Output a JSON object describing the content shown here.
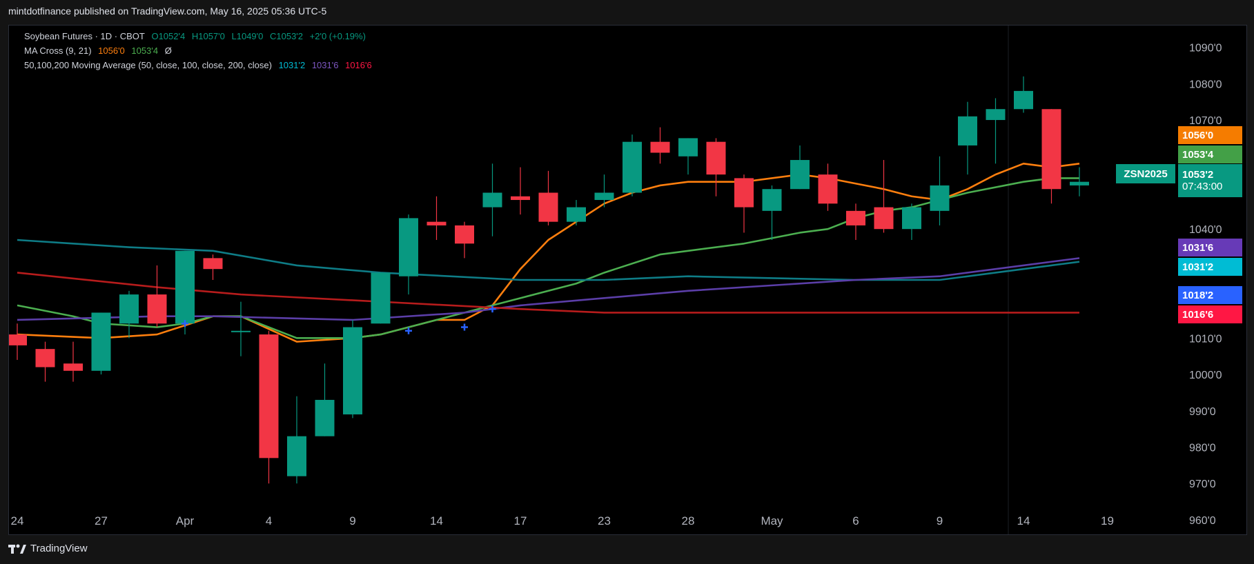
{
  "header": {
    "publisher": "mintdotfinance published on TradingView.com, May 16, 2025 05:36 UTC-5"
  },
  "legend": {
    "line1": {
      "title": "Soybean Futures · 1D · CBOT",
      "open": "O1052'4",
      "high": "H1057'0",
      "low": "L1049'0",
      "close": "C1053'2",
      "change": "+2'0 (+0.19%)"
    },
    "line2": {
      "label": "MA Cross (9, 21)",
      "v1": "1056'0",
      "v2": "1053'4",
      "v3": "Ø"
    },
    "line3": {
      "label": "50,100,200 Moving Average (50, close, 100, close, 200, close)",
      "v1": "1031'2",
      "v2": "1031'6",
      "v3": "1016'6"
    }
  },
  "price_tags": {
    "ma9": "1056'0",
    "ma21": "1053'4",
    "symbol": "ZSN2025",
    "last": "1053'2",
    "countdown": "07:43:00",
    "ma100": "1031'6",
    "ma50": "1031'2",
    "hidden": "1018'2",
    "ma200": "1016'6"
  },
  "footer": {
    "brand": "TradingView"
  },
  "colors": {
    "up": "#089981",
    "down": "#f23645",
    "ma9": "#ff7f0e",
    "ma21": "#4caf50",
    "ma50": "#0e7c86",
    "ma100": "#5b3ea8",
    "ma200": "#b71c1c",
    "cross": "#2962ff"
  },
  "chart_data": {
    "type": "candlestick",
    "title": "Soybean Futures · 1D · CBOT",
    "y_ticks": [
      "960'0",
      "970'0",
      "980'0",
      "990'0",
      "1000'0",
      "1010'0",
      "1040'0",
      "1070'0",
      "1080'0",
      "1090'0"
    ],
    "y_tick_values": [
      960,
      970,
      980,
      990,
      1000,
      1010,
      1040,
      1070,
      1080,
      1090
    ],
    "ylim": [
      956,
      1096
    ],
    "x_ticks": [
      {
        "label": "24",
        "i": 0
      },
      {
        "label": "27",
        "i": 3
      },
      {
        "label": "Apr",
        "i": 6
      },
      {
        "label": "4",
        "i": 9
      },
      {
        "label": "9",
        "i": 12
      },
      {
        "label": "14",
        "i": 15
      },
      {
        "label": "17",
        "i": 18
      },
      {
        "label": "23",
        "i": 21
      },
      {
        "label": "28",
        "i": 24
      },
      {
        "label": "May",
        "i": 27
      },
      {
        "label": "6",
        "i": 30
      },
      {
        "label": "9",
        "i": 33
      },
      {
        "label": "14",
        "i": 36
      },
      {
        "label": "19",
        "i": 39
      }
    ],
    "candles": [
      {
        "o": 1011,
        "h": 1014,
        "l": 1004,
        "c": 1008
      },
      {
        "o": 1007,
        "h": 1009,
        "l": 998,
        "c": 1002
      },
      {
        "o": 1003,
        "h": 1009,
        "l": 998,
        "c": 1001
      },
      {
        "o": 1001,
        "h": 1017,
        "l": 1000,
        "c": 1017
      },
      {
        "o": 1014,
        "h": 1023,
        "l": 1010,
        "c": 1022
      },
      {
        "o": 1022,
        "h": 1030,
        "l": 1013,
        "c": 1014
      },
      {
        "o": 1014,
        "h": 1034,
        "l": 1011,
        "c": 1034
      },
      {
        "o": 1032,
        "h": 1033,
        "l": 1026,
        "c": 1029
      },
      {
        "o": 1012,
        "h": 1020,
        "l": 1005,
        "c": 1012
      },
      {
        "o": 1011,
        "h": 1012,
        "l": 970,
        "c": 977
      },
      {
        "o": 972,
        "h": 994,
        "l": 970,
        "c": 983
      },
      {
        "o": 983,
        "h": 1003,
        "l": 983,
        "c": 993
      },
      {
        "o": 989,
        "h": 1015,
        "l": 988,
        "c": 1013
      },
      {
        "o": 1014,
        "h": 1028,
        "l": 1014,
        "c": 1028
      },
      {
        "o": 1027,
        "h": 1044,
        "l": 1022,
        "c": 1043
      },
      {
        "o": 1042,
        "h": 1049,
        "l": 1037,
        "c": 1041
      },
      {
        "o": 1041,
        "h": 1042,
        "l": 1032,
        "c": 1036
      },
      {
        "o": 1046,
        "h": 1058,
        "l": 1038,
        "c": 1050
      },
      {
        "o": 1049,
        "h": 1057,
        "l": 1044,
        "c": 1048
      },
      {
        "o": 1050,
        "h": 1056,
        "l": 1041,
        "c": 1042
      },
      {
        "o": 1042,
        "h": 1048,
        "l": 1041,
        "c": 1046
      },
      {
        "o": 1048,
        "h": 1055,
        "l": 1046,
        "c": 1050
      },
      {
        "o": 1050,
        "h": 1066,
        "l": 1049,
        "c": 1064
      },
      {
        "o": 1064,
        "h": 1068,
        "l": 1058,
        "c": 1061
      },
      {
        "o": 1060,
        "h": 1065,
        "l": 1055,
        "c": 1065
      },
      {
        "o": 1064,
        "h": 1065,
        "l": 1049,
        "c": 1055
      },
      {
        "o": 1054,
        "h": 1055,
        "l": 1039,
        "c": 1046
      },
      {
        "o": 1045,
        "h": 1052,
        "l": 1037,
        "c": 1051
      },
      {
        "o": 1051,
        "h": 1063,
        "l": 1051,
        "c": 1059
      },
      {
        "o": 1055,
        "h": 1058,
        "l": 1045,
        "c": 1047
      },
      {
        "o": 1045,
        "h": 1047,
        "l": 1037,
        "c": 1041
      },
      {
        "o": 1046,
        "h": 1059,
        "l": 1039,
        "c": 1040
      },
      {
        "o": 1040,
        "h": 1047,
        "l": 1037,
        "c": 1046
      },
      {
        "o": 1045,
        "h": 1060,
        "l": 1041,
        "c": 1052
      },
      {
        "o": 1063,
        "h": 1075,
        "l": 1055,
        "c": 1071
      },
      {
        "o": 1070,
        "h": 1076,
        "l": 1058,
        "c": 1073
      },
      {
        "o": 1073,
        "h": 1082,
        "l": 1072,
        "c": 1078
      },
      {
        "o": 1073,
        "h": 1073,
        "l": 1047,
        "c": 1051
      },
      {
        "o": 1052,
        "h": 1057,
        "l": 1049,
        "c": 1053
      }
    ],
    "series": [
      {
        "name": "MA 9",
        "key": "ma9",
        "values": [
          [
            0,
            1011
          ],
          [
            3,
            1010
          ],
          [
            5,
            1011
          ],
          [
            7,
            1016
          ],
          [
            8,
            1016
          ],
          [
            10,
            1009
          ],
          [
            12,
            1010
          ],
          [
            13,
            1011
          ],
          [
            15,
            1015
          ],
          [
            16,
            1015
          ],
          [
            17,
            1019
          ],
          [
            18,
            1029
          ],
          [
            19,
            1037
          ],
          [
            21,
            1047
          ],
          [
            22,
            1050
          ],
          [
            23,
            1052
          ],
          [
            24,
            1053
          ],
          [
            25,
            1053
          ],
          [
            26,
            1053
          ],
          [
            28,
            1055
          ],
          [
            29,
            1054
          ],
          [
            31,
            1051
          ],
          [
            32,
            1049
          ],
          [
            33,
            1048
          ],
          [
            34,
            1051
          ],
          [
            35,
            1055
          ],
          [
            36,
            1058
          ],
          [
            37,
            1057
          ],
          [
            38,
            1058
          ]
        ]
      },
      {
        "name": "MA 21",
        "key": "ma21",
        "values": [
          [
            0,
            1019
          ],
          [
            2,
            1016
          ],
          [
            3,
            1014
          ],
          [
            5,
            1013
          ],
          [
            6,
            1014
          ],
          [
            7,
            1016
          ],
          [
            8,
            1016
          ],
          [
            10,
            1010
          ],
          [
            12,
            1010
          ],
          [
            13,
            1011
          ],
          [
            15,
            1015
          ],
          [
            17,
            1019
          ],
          [
            18,
            1021
          ],
          [
            20,
            1025
          ],
          [
            21,
            1028
          ],
          [
            23,
            1033
          ],
          [
            24,
            1034
          ],
          [
            26,
            1036
          ],
          [
            28,
            1039
          ],
          [
            29,
            1040
          ],
          [
            30,
            1043
          ],
          [
            31,
            1045
          ],
          [
            32,
            1046
          ],
          [
            33,
            1048
          ],
          [
            34,
            1050
          ],
          [
            36,
            1053
          ],
          [
            37,
            1054
          ],
          [
            38,
            1054
          ]
        ]
      },
      {
        "name": "MA 50",
        "key": "ma50",
        "values": [
          [
            0,
            1037
          ],
          [
            2,
            1036
          ],
          [
            4,
            1035
          ],
          [
            7,
            1034
          ],
          [
            10,
            1030
          ],
          [
            13,
            1028
          ],
          [
            18,
            1026
          ],
          [
            21,
            1026
          ],
          [
            24,
            1027
          ],
          [
            30,
            1026
          ],
          [
            33,
            1026
          ],
          [
            35,
            1028
          ],
          [
            37,
            1030
          ],
          [
            38,
            1031
          ]
        ]
      },
      {
        "name": "MA 100",
        "key": "ma100",
        "values": [
          [
            0,
            1015
          ],
          [
            5,
            1016
          ],
          [
            7,
            1016
          ],
          [
            12,
            1015
          ],
          [
            16,
            1017
          ],
          [
            18,
            1019
          ],
          [
            21,
            1021
          ],
          [
            24,
            1023
          ],
          [
            30,
            1026
          ],
          [
            33,
            1027
          ],
          [
            35,
            1029
          ],
          [
            37,
            1031
          ],
          [
            38,
            1032
          ]
        ]
      },
      {
        "name": "MA 200",
        "key": "ma200",
        "values": [
          [
            0,
            1028
          ],
          [
            5,
            1024
          ],
          [
            8,
            1022
          ],
          [
            13,
            1020
          ],
          [
            18,
            1018
          ],
          [
            21,
            1017
          ],
          [
            24,
            1017
          ],
          [
            30,
            1017
          ],
          [
            34,
            1017
          ],
          [
            38,
            1017
          ]
        ]
      }
    ],
    "crosses": [
      [
        6,
        1014
      ],
      [
        14,
        1012
      ],
      [
        16,
        1013
      ],
      [
        17,
        1018
      ]
    ],
    "grid": false
  }
}
